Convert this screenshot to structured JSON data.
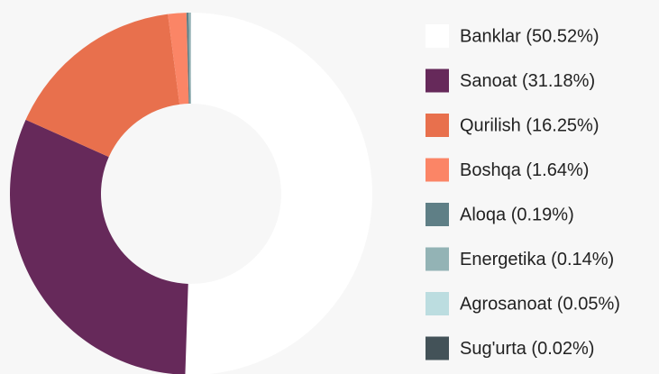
{
  "chart_data": {
    "type": "donut",
    "categories": [
      "Banklar (50.52%)",
      "Sanoat (31.18%)",
      "Qurilish (16.25%)",
      "Boshqa (1.64%)",
      "Aloqa (0.19%)",
      "Energetika (0.14%)",
      "Agrosanoat (0.05%)",
      "Sug'urta (0.02%)"
    ],
    "values": [
      50.52,
      31.18,
      16.25,
      1.64,
      0.19,
      0.14,
      0.05,
      0.02
    ],
    "colors": [
      "#ffffff",
      "#66295a",
      "#e8704d",
      "#fb8566",
      "#5f7f86",
      "#93b3b5",
      "#bcdde0",
      "#435258"
    ],
    "legend": "right"
  }
}
